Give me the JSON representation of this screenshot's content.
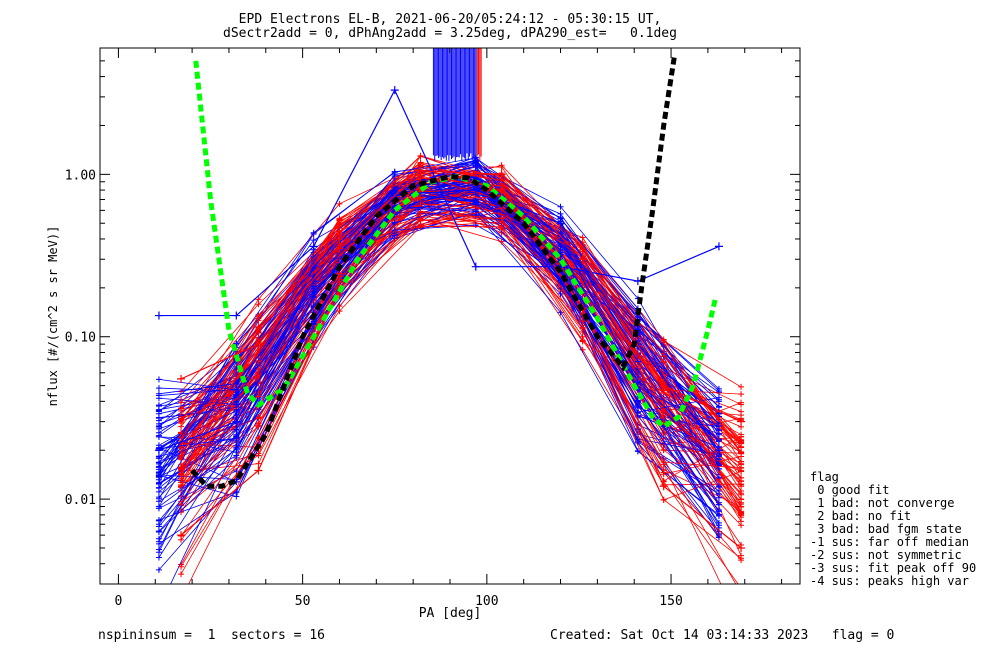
{
  "title_line1": "EPD Electrons EL-B, 2021-06-20/05:24:12 - 05:30:15 UT,",
  "title_line2": "dSectr2add = 0, dPhAng2add = 3.25deg, dPA290_est=   0.1deg",
  "footer": {
    "left": "nspininsum =  1  sectors = 16",
    "created": "Created: Sat Oct 14 03:14:33 2023",
    "flag": "flag = 0"
  },
  "flag_legend": {
    "title": "flag",
    "items": [
      " 0 good fit",
      " 1 bad: not converge",
      " 2 bad: no fit",
      " 3 bad: bad fgm state",
      "-1 sus: far off median",
      "-2 sus: not symmetric",
      "-3 sus: fit peak off 90",
      "-4 sus: peaks high var"
    ]
  },
  "colors": {
    "blue": "#0000ff",
    "red": "#ff0000",
    "green": "#00ff00",
    "black": "#000000"
  },
  "chart_data": {
    "type": "line",
    "title": "EPD Electrons EL-B, 2021-06-20/05:24:12 - 05:30:15 UT,",
    "xlabel": "PA [deg]",
    "ylabel": "nflux [#/(cm^2 s sr MeV)]",
    "xlim": [
      -5,
      185
    ],
    "ylim": [
      0.003,
      6.0
    ],
    "yscale": "log",
    "x_ticks": [
      0,
      50,
      100,
      150
    ],
    "x_tick_labels": [
      "0",
      "50",
      "100",
      "150"
    ],
    "y_ticks": [
      0.01,
      0.1,
      1.0
    ],
    "y_tick_labels": [
      "0.01",
      "0.10",
      "1.00"
    ],
    "grid": false,
    "series": [
      {
        "color": "blue",
        "style": "line+cross",
        "x": [
          11,
          32,
          53,
          75,
          97,
          120,
          141,
          163
        ],
        "y": [
          0.135,
          0.135,
          0.36,
          3.3,
          0.27,
          0.27,
          0.22,
          0.36
        ]
      },
      {
        "color": "blue",
        "style": "line+cross",
        "x": [
          11,
          32,
          53,
          75,
          97,
          120,
          141,
          163
        ],
        "y": [
          0.02,
          0.03,
          0.22,
          0.75,
          0.8,
          0.5,
          0.09,
          0.02
        ]
      },
      {
        "color": "red",
        "style": "line+cross",
        "x": [
          17,
          38,
          60,
          82,
          104,
          126,
          148,
          169
        ],
        "y": [
          0.055,
          0.09,
          0.35,
          1.05,
          1.0,
          0.3,
          0.05,
          0.03
        ]
      },
      {
        "color": "red",
        "style": "line+cross",
        "x": [
          17,
          38,
          60,
          82,
          104,
          126,
          148,
          169
        ],
        "y": [
          0.006,
          0.015,
          0.2,
          0.95,
          0.85,
          0.15,
          0.012,
          0.005
        ]
      },
      {
        "color": "green",
        "style": "dashed-fit",
        "x": [
          21,
          25,
          30,
          35,
          38,
          45,
          55,
          65,
          75,
          85,
          92,
          100,
          110,
          120,
          130,
          140,
          145,
          148,
          152,
          156,
          160,
          162
        ],
        "y": [
          5.0,
          0.7,
          0.11,
          0.045,
          0.038,
          0.048,
          0.12,
          0.3,
          0.6,
          0.9,
          0.97,
          0.85,
          0.55,
          0.3,
          0.13,
          0.05,
          0.032,
          0.028,
          0.032,
          0.05,
          0.11,
          0.17
        ]
      },
      {
        "color": "black",
        "style": "dashed-fit",
        "x": [
          20,
          24,
          28,
          32,
          40,
          50,
          60,
          70,
          80,
          90,
          95,
          100,
          110,
          120,
          130,
          137,
          140,
          142,
          145,
          148,
          151
        ],
        "y": [
          0.015,
          0.012,
          0.012,
          0.013,
          0.025,
          0.1,
          0.27,
          0.55,
          0.85,
          0.97,
          0.95,
          0.8,
          0.5,
          0.25,
          0.1,
          0.065,
          0.09,
          0.2,
          0.6,
          2.0,
          5.5
        ]
      }
    ]
  }
}
